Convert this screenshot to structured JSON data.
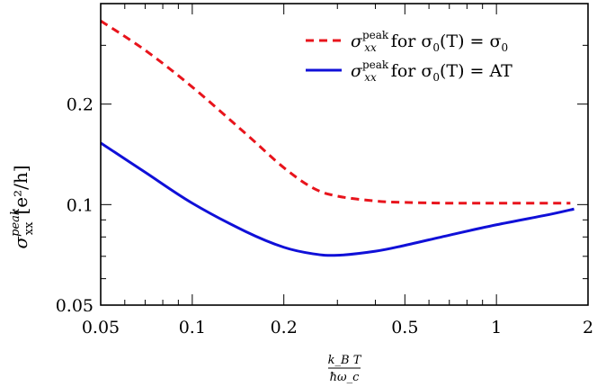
{
  "chart_data": {
    "type": "line",
    "xscale": "log",
    "yscale": "log",
    "xlim": [
      0.05,
      2
    ],
    "ylim": [
      0.05,
      0.4
    ],
    "xticks": [
      0.05,
      0.1,
      0.2,
      0.5,
      1,
      2
    ],
    "xtick_labels": [
      "0.05",
      "0.1",
      "0.2",
      "0.5",
      "1",
      "2"
    ],
    "yticks": [
      0.05,
      0.1,
      0.2
    ],
    "ytick_labels": [
      "0.05",
      "0.1",
      "0.2"
    ],
    "xlabel_num": "k_B T",
    "xlabel_den": "ħω_c",
    "ylabel_main": "σ",
    "ylabel_sup": "peak",
    "ylabel_sub": "xx",
    "ylabel_units": "[e²/h]",
    "legend_position": "top-right",
    "grid": false,
    "series": [
      {
        "name": "σ_xx^peak for σ_0(T) = σ_0",
        "legend_main": "σ",
        "legend_sup": "peak",
        "legend_sub": "xx",
        "legend_rest_1": " for σ",
        "legend_rest_sub": "0",
        "legend_rest_2": "(T) = σ",
        "legend_rest_sub2": "0",
        "color": "#e8141c",
        "style": "dashed",
        "x": [
          0.05,
          0.07,
          0.1,
          0.15,
          0.2,
          0.25,
          0.3,
          0.4,
          0.5,
          0.7,
          1,
          1.5,
          1.75
        ],
        "y": [
          0.355,
          0.29,
          0.225,
          0.163,
          0.129,
          0.112,
          0.106,
          0.1025,
          0.1015,
          0.101,
          0.101,
          0.101,
          0.101
        ]
      },
      {
        "name": "σ_xx^peak for σ_0(T) = AT",
        "legend_main": "σ",
        "legend_sup": "peak",
        "legend_sub": "xx",
        "legend_rest_1": " for σ",
        "legend_rest_sub": "0",
        "legend_rest_2": "(T) = AT",
        "legend_rest_sub2": "",
        "color": "#1010d8",
        "style": "solid",
        "x": [
          0.05,
          0.07,
          0.1,
          0.15,
          0.2,
          0.25,
          0.3,
          0.4,
          0.5,
          0.7,
          1,
          1.5,
          1.8
        ],
        "y": [
          0.153,
          0.125,
          0.101,
          0.083,
          0.0745,
          0.0712,
          0.0705,
          0.0725,
          0.0755,
          0.081,
          0.087,
          0.0935,
          0.097
        ]
      }
    ]
  }
}
